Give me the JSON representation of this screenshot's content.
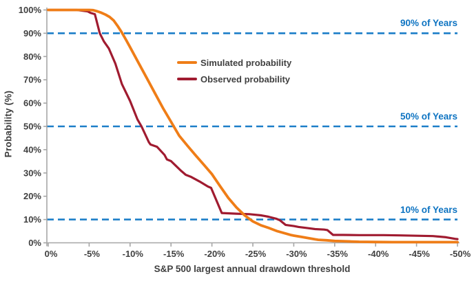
{
  "chart_data": {
    "type": "line",
    "title": "",
    "xlabel": "S&P 500 largest annual drawdown threshold",
    "ylabel": "Probability (%)",
    "xlim": [
      0,
      -50
    ],
    "ylim": [
      0,
      100
    ],
    "grid": false,
    "legend_position": "inside-upper-middle",
    "x_ticks": [
      0,
      -5,
      -10,
      -15,
      -20,
      -25,
      -30,
      -35,
      -40,
      -45,
      -50
    ],
    "x_tick_labels": [
      "0%",
      "-5%",
      "-10%",
      "-15%",
      "-20%",
      "-25%",
      "-30%",
      "-35%",
      "-40%",
      "-45%",
      "-50%"
    ],
    "y_ticks": [
      0,
      10,
      20,
      30,
      40,
      50,
      60,
      70,
      80,
      90,
      100
    ],
    "y_tick_labels": [
      "0%",
      "10%",
      "20%",
      "30%",
      "40%",
      "50%",
      "60%",
      "70%",
      "80%",
      "90%",
      "100%"
    ],
    "series": [
      {
        "name": "Simulated probability",
        "color": "#EF7D17",
        "width": 3.8,
        "points": [
          [
            0,
            100
          ],
          [
            -3,
            100
          ],
          [
            -5,
            100
          ],
          [
            -5.5,
            99.9
          ],
          [
            -6,
            99.4
          ],
          [
            -6.5,
            98.8
          ],
          [
            -7,
            98
          ],
          [
            -7.5,
            97
          ],
          [
            -8,
            95.5
          ],
          [
            -8.5,
            93
          ],
          [
            -9,
            90.3
          ],
          [
            -9.5,
            87.2
          ],
          [
            -10,
            84
          ],
          [
            -11,
            77.5
          ],
          [
            -12,
            71
          ],
          [
            -13,
            64.5
          ],
          [
            -14,
            58
          ],
          [
            -15,
            52
          ],
          [
            -16,
            46
          ],
          [
            -17,
            41.7
          ],
          [
            -18,
            37.6
          ],
          [
            -19,
            33.6
          ],
          [
            -20,
            29.5
          ],
          [
            -21,
            24.3
          ],
          [
            -22,
            19.3
          ],
          [
            -23,
            15.2
          ],
          [
            -24,
            11.8
          ],
          [
            -25,
            9.2
          ],
          [
            -26,
            7.5
          ],
          [
            -27,
            6.3
          ],
          [
            -28,
            5
          ],
          [
            -29,
            4
          ],
          [
            -29.7,
            3.3
          ],
          [
            -30,
            3.1
          ],
          [
            -31,
            2.5
          ],
          [
            -32,
            1.9
          ],
          [
            -32.6,
            1.5
          ],
          [
            -33,
            1.3
          ],
          [
            -34,
            1.1
          ],
          [
            -35,
            0.8
          ],
          [
            -36,
            0.7
          ],
          [
            -37,
            0.55
          ],
          [
            -38,
            0.45
          ],
          [
            -39,
            0.4
          ],
          [
            -40,
            0.35
          ],
          [
            -42,
            0.3
          ],
          [
            -44,
            0.3
          ],
          [
            -46,
            0.3
          ],
          [
            -48,
            0.3
          ],
          [
            -50,
            0.3
          ]
        ]
      },
      {
        "name": "Observed probability",
        "color": "#A01B30",
        "width": 3.2,
        "points": [
          [
            0,
            100
          ],
          [
            -3.5,
            100
          ],
          [
            -4.8,
            99.4
          ],
          [
            -5.2,
            98.7
          ],
          [
            -5.7,
            98.2
          ],
          [
            -6.3,
            90
          ],
          [
            -6.8,
            86.5
          ],
          [
            -7.4,
            83.5
          ],
          [
            -8.2,
            77
          ],
          [
            -9,
            68.2
          ],
          [
            -10,
            60.9
          ],
          [
            -10.9,
            53
          ],
          [
            -11.4,
            50
          ],
          [
            -12.3,
            43.2
          ],
          [
            -12.5,
            42.2
          ],
          [
            -13.3,
            41.2
          ],
          [
            -14.2,
            37.8
          ],
          [
            -14.5,
            35.8
          ],
          [
            -15,
            35.1
          ],
          [
            -16.2,
            31
          ],
          [
            -16.8,
            29.2
          ],
          [
            -17.4,
            28.4
          ],
          [
            -18.5,
            26.3
          ],
          [
            -19.5,
            24.2
          ],
          [
            -19.9,
            23.6
          ],
          [
            -21.2,
            12.8
          ],
          [
            -23,
            12.5
          ],
          [
            -24.6,
            12.3
          ],
          [
            -26,
            11.8
          ],
          [
            -26.9,
            11.2
          ],
          [
            -27.9,
            10.3
          ],
          [
            -28.3,
            9.7
          ],
          [
            -29,
            7.7
          ],
          [
            -30,
            7.2
          ],
          [
            -30.6,
            6.8
          ],
          [
            -31.7,
            6.3
          ],
          [
            -32.6,
            5.9
          ],
          [
            -33.7,
            5.7
          ],
          [
            -34.1,
            5.5
          ],
          [
            -34.8,
            3.4
          ],
          [
            -36,
            3.4
          ],
          [
            -38,
            3.3
          ],
          [
            -41,
            3.3
          ],
          [
            -43,
            3.2
          ],
          [
            -45.5,
            3.0
          ],
          [
            -47,
            2.9
          ],
          [
            -48.6,
            2.4
          ],
          [
            -49.7,
            1.7
          ],
          [
            -50,
            1.6
          ]
        ]
      }
    ],
    "ref_lines": [
      {
        "label": "90% of Years",
        "value": 90
      },
      {
        "label": "50% of Years",
        "value": 50
      },
      {
        "label": "10% of Years",
        "value": 10
      }
    ],
    "colors": {
      "ref_line": "#1C7EC8",
      "ref_label_text": "#0E74C2",
      "axis": "#A6A6A6",
      "tick_text": "#404040",
      "title_text": "#404040"
    }
  }
}
